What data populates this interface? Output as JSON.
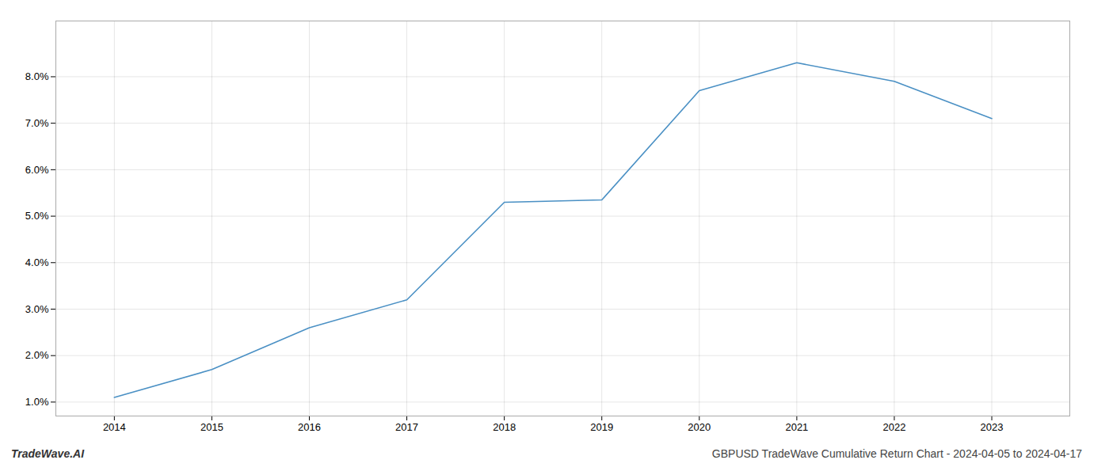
{
  "chart_data": {
    "type": "line",
    "title": "GBPUSD TradeWave Cumulative Return Chart - 2024-04-05 to 2024-04-17",
    "annotations": [
      "TradeWave.AI"
    ],
    "x": [
      2014,
      2015,
      2016,
      2017,
      2018,
      2019,
      2020,
      2021,
      2022,
      2023
    ],
    "values": [
      1.1,
      1.7,
      2.6,
      3.2,
      5.3,
      5.35,
      7.7,
      8.3,
      7.9,
      7.1
    ],
    "color": "#4a90c4",
    "xlim": [
      2013.4,
      2023.8
    ],
    "xticks": [
      2014,
      2015,
      2016,
      2017,
      2018,
      2019,
      2020,
      2021,
      2022,
      2023
    ],
    "ylim": [
      0.7,
      9.2
    ],
    "yticks": [
      {
        "value": 1.0,
        "label": "1.0%"
      },
      {
        "value": 2.0,
        "label": "2.0%"
      },
      {
        "value": 3.0,
        "label": "3.0%"
      },
      {
        "value": 4.0,
        "label": "4.0%"
      },
      {
        "value": 5.0,
        "label": "5.0%"
      },
      {
        "value": 6.0,
        "label": "6.0%"
      },
      {
        "value": 7.0,
        "label": "7.0%"
      },
      {
        "value": 8.0,
        "label": "8.0%"
      }
    ],
    "grid": true
  }
}
